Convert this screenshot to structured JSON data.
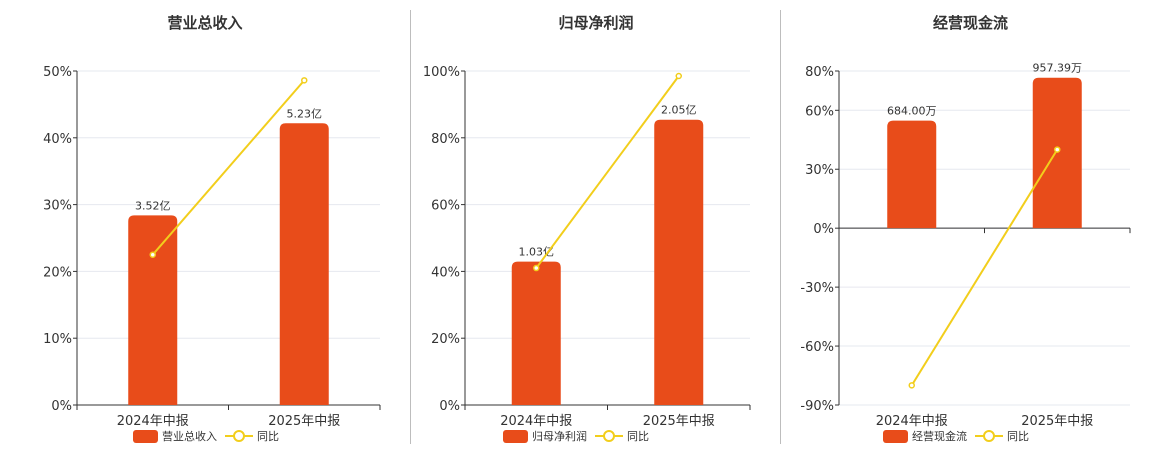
{
  "colors": {
    "bar": "#E84C1A",
    "line": "#F2CE1C",
    "grid": "#e6e8ef",
    "axis": "#333333"
  },
  "chart_data": [
    {
      "type": "bar",
      "title": "营业总收入",
      "categories": [
        "2024年中报",
        "2025年中报"
      ],
      "bar_series": {
        "name": "营业总收入",
        "values": [
          3.52,
          5.23
        ],
        "labels": [
          "3.52亿",
          "5.23亿"
        ]
      },
      "line_series": {
        "name": "同比",
        "values": [
          22.5,
          48.6
        ]
      },
      "ylim": [
        0,
        50
      ],
      "yticks": [
        0,
        10,
        20,
        30,
        40,
        50
      ],
      "ytick_labels": [
        "0%",
        "10%",
        "20%",
        "30%",
        "40%",
        "50%"
      ],
      "bar_max": 6.2
    },
    {
      "type": "bar",
      "title": "归母净利润",
      "categories": [
        "2024年中报",
        "2025年中报"
      ],
      "bar_series": {
        "name": "归母净利润",
        "values": [
          1.03,
          2.05
        ],
        "labels": [
          "1.03亿",
          "2.05亿"
        ]
      },
      "line_series": {
        "name": "同比",
        "values": [
          41,
          98.5
        ]
      },
      "ylim": [
        0,
        100
      ],
      "yticks": [
        0,
        20,
        40,
        60,
        80,
        100
      ],
      "ytick_labels": [
        "0%",
        "20%",
        "40%",
        "60%",
        "80%",
        "100%"
      ],
      "bar_max": 2.4
    },
    {
      "type": "bar",
      "title": "经营现金流",
      "categories": [
        "2024年中报",
        "2025年中报"
      ],
      "bar_series": {
        "name": "经营现金流",
        "values": [
          684.0,
          957.39
        ],
        "labels": [
          "684.00万",
          "957.39万"
        ]
      },
      "line_series": {
        "name": "同比",
        "values": [
          -80,
          40
        ]
      },
      "ylim": [
        -90,
        80
      ],
      "yticks": [
        -90,
        -60,
        -30,
        0,
        30,
        60,
        80
      ],
      "ytick_labels": [
        "-90%",
        "-60%",
        "-30%",
        "0%",
        "30%",
        "60%",
        "80%"
      ],
      "bar_max": 1000
    }
  ]
}
